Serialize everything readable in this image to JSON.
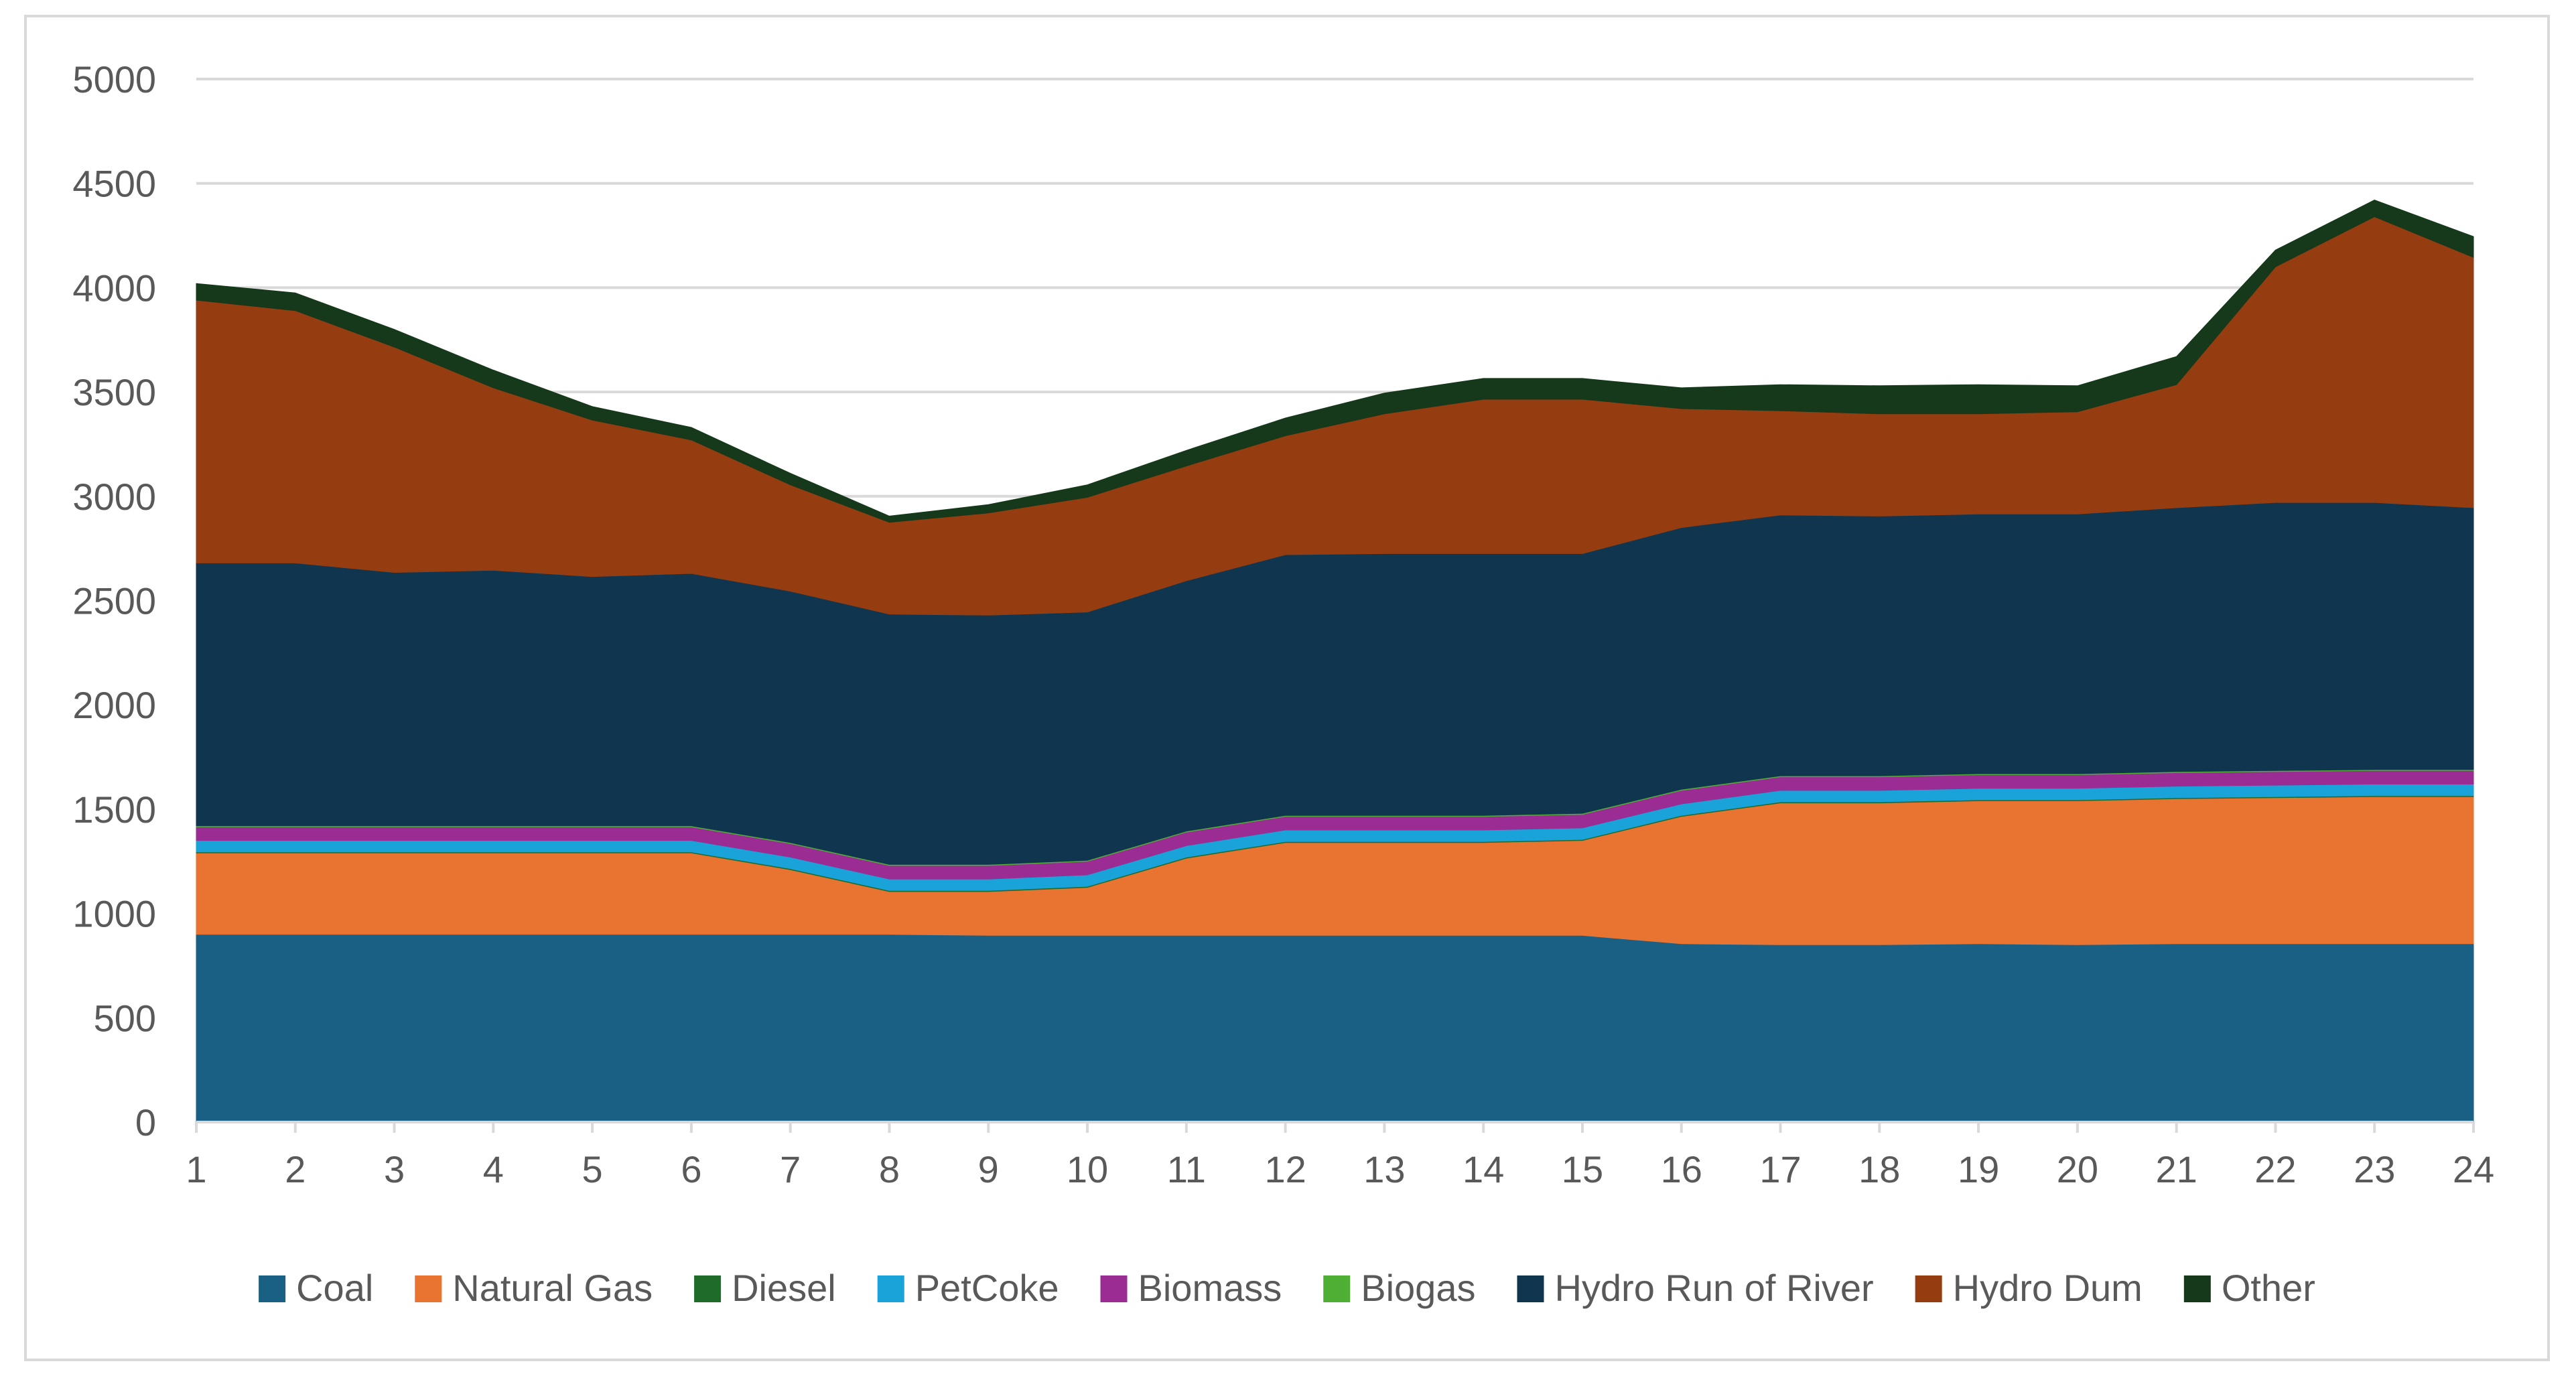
{
  "chart_data": {
    "type": "area",
    "stacked": true,
    "title": "",
    "xlabel": "",
    "ylabel": "",
    "ylim": [
      0,
      5000
    ],
    "yticks": [
      0,
      500,
      1000,
      1500,
      2000,
      2500,
      3000,
      3500,
      4000,
      4500,
      5000
    ],
    "grid": true,
    "legend": "bottom",
    "x": [
      1,
      2,
      3,
      4,
      5,
      6,
      7,
      8,
      9,
      10,
      11,
      12,
      13,
      14,
      15,
      16,
      17,
      18,
      19,
      20,
      21,
      22,
      23,
      24
    ],
    "series": [
      {
        "name": "Coal",
        "color": "#1a5f84",
        "values": [
          900,
          900,
          900,
          900,
          900,
          900,
          900,
          900,
          895,
          895,
          895,
          895,
          895,
          895,
          895,
          855,
          850,
          850,
          855,
          850,
          855,
          855,
          855,
          855
        ]
      },
      {
        "name": "Natural Gas",
        "color": "#e97432",
        "values": [
          390,
          390,
          390,
          390,
          390,
          390,
          310,
          205,
          210,
          230,
          370,
          445,
          445,
          445,
          455,
          610,
          680,
          680,
          685,
          690,
          695,
          700,
          705,
          705
        ]
      },
      {
        "name": "Diesel",
        "color": "#1f6b2a",
        "values": [
          5,
          5,
          5,
          5,
          5,
          5,
          5,
          5,
          5,
          5,
          5,
          5,
          5,
          5,
          5,
          5,
          5,
          5,
          5,
          5,
          5,
          5,
          5,
          5
        ]
      },
      {
        "name": "PetCoke",
        "color": "#1aa3d9",
        "values": [
          55,
          55,
          55,
          55,
          55,
          55,
          55,
          55,
          55,
          55,
          55,
          55,
          55,
          55,
          55,
          55,
          55,
          55,
          55,
          55,
          55,
          55,
          55,
          55
        ]
      },
      {
        "name": "Biomass",
        "color": "#9b2c93",
        "values": [
          65,
          65,
          65,
          65,
          65,
          65,
          65,
          65,
          65,
          65,
          65,
          65,
          65,
          65,
          65,
          65,
          65,
          65,
          65,
          65,
          65,
          65,
          65,
          65
        ]
      },
      {
        "name": "Biogas",
        "color": "#4fae34",
        "values": [
          5,
          5,
          5,
          5,
          5,
          5,
          5,
          5,
          5,
          5,
          5,
          5,
          5,
          5,
          5,
          5,
          5,
          5,
          5,
          5,
          5,
          5,
          5,
          5
        ]
      },
      {
        "name": "Hydro Run of River",
        "color": "#10364f",
        "values": [
          1260,
          1260,
          1215,
          1225,
          1195,
          1210,
          1205,
          1200,
          1195,
          1190,
          1200,
          1250,
          1255,
          1255,
          1245,
          1255,
          1250,
          1245,
          1245,
          1245,
          1265,
          1285,
          1280,
          1255
        ]
      },
      {
        "name": "Hydro Dum",
        "color": "#953d11",
        "values": [
          1260,
          1210,
          1080,
          875,
          750,
          640,
          510,
          440,
          490,
          550,
          550,
          570,
          670,
          740,
          740,
          570,
          500,
          490,
          480,
          490,
          590,
          1130,
          1370,
          1200
        ]
      },
      {
        "name": "Other",
        "color": "#15391a",
        "values": [
          80,
          85,
          85,
          85,
          65,
          60,
          55,
          30,
          40,
          60,
          75,
          85,
          100,
          100,
          100,
          100,
          125,
          135,
          140,
          125,
          135,
          80,
          80,
          100
        ]
      }
    ]
  }
}
